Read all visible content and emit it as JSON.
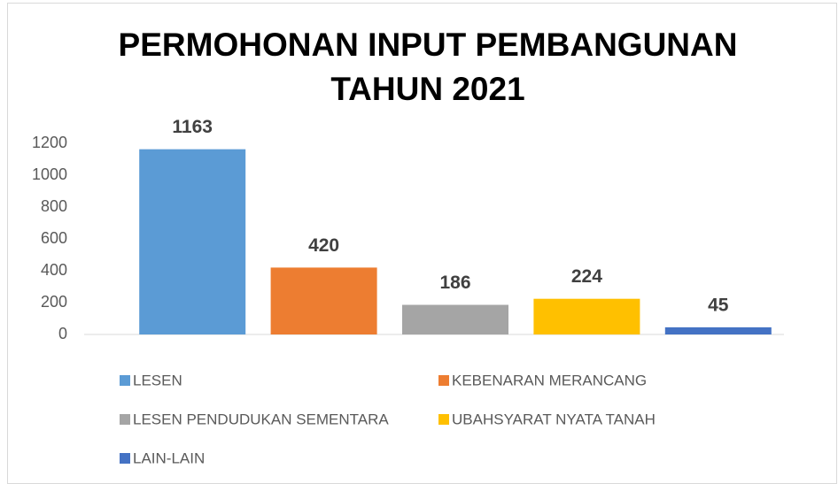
{
  "chart_data": {
    "type": "bar",
    "title": "PERMOHONAN INPUT PEMBANGUNAN TAHUN 2021",
    "categories": [
      "LESEN",
      "KEBENARAN MERANCANG",
      "LESEN PENDUDUKAN SEMENTARA",
      "UBAHSYARAT NYATA TANAH",
      "LAIN-LAIN"
    ],
    "values": [
      1163,
      420,
      186,
      224,
      45
    ],
    "colors": [
      "#5b9bd5",
      "#ed7d31",
      "#a5a5a5",
      "#ffc000",
      "#4472c4"
    ],
    "ylim": [
      0,
      1200
    ],
    "yticks": [
      0,
      200,
      400,
      600,
      800,
      1000,
      1200
    ],
    "grid": false,
    "legend": "bottom"
  }
}
